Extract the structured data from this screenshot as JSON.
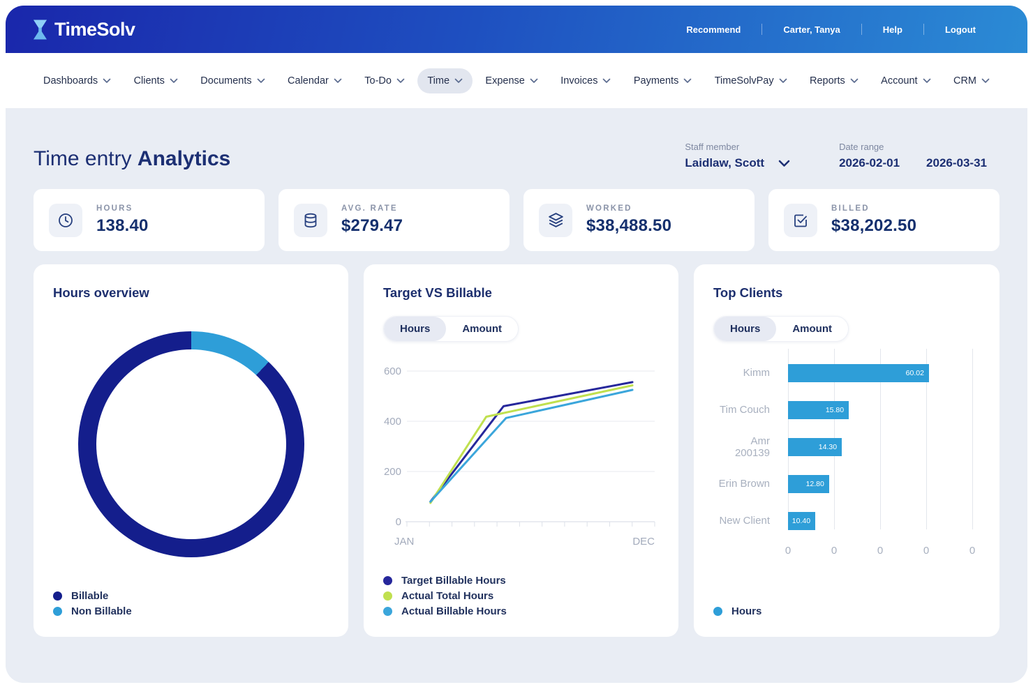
{
  "header": {
    "logo_text": "TimeSolv",
    "links": [
      "Recommend",
      "Carter, Tanya",
      "Help",
      "Logout"
    ]
  },
  "nav": {
    "items": [
      {
        "label": "Dashboards",
        "active": false
      },
      {
        "label": "Clients",
        "active": false
      },
      {
        "label": "Documents",
        "active": false
      },
      {
        "label": "Calendar",
        "active": false
      },
      {
        "label": "To-Do",
        "active": false
      },
      {
        "label": "Time",
        "active": true
      },
      {
        "label": "Expense",
        "active": false
      },
      {
        "label": "Invoices",
        "active": false
      },
      {
        "label": "Payments",
        "active": false
      },
      {
        "label": "TimeSolvPay",
        "active": false
      },
      {
        "label": "Reports",
        "active": false
      },
      {
        "label": "Account",
        "active": false
      },
      {
        "label": "CRM",
        "active": false
      }
    ]
  },
  "page": {
    "title_regular": "Time entry ",
    "title_bold": "Analytics",
    "staff_member": {
      "label": "Staff member",
      "value": "Laidlaw, Scott"
    },
    "date_range": {
      "label": "Date range",
      "start": "2026-02-01",
      "end": "2026-03-31"
    }
  },
  "stats": [
    {
      "icon": "clock-icon",
      "label": "HOURS",
      "value": "138.40"
    },
    {
      "icon": "database-icon",
      "label": "AVG. RATE",
      "value": "$279.47"
    },
    {
      "icon": "layers-icon",
      "label": "WORKED",
      "value": "$38,488.50"
    },
    {
      "icon": "check-square-icon",
      "label": "BILLED",
      "value": "$38,202.50"
    }
  ],
  "panels": {
    "hours_overview": {
      "title": "Hours overview"
    },
    "target_vs_billable": {
      "title": "Target VS Billable",
      "tabs": [
        "Hours",
        "Amount"
      ],
      "active_tab": "Hours"
    },
    "top_clients": {
      "title": "Top Clients",
      "tabs": [
        "Hours",
        "Amount"
      ],
      "active_tab": "Hours"
    }
  },
  "chart_data": [
    {
      "type": "pie",
      "subtype": "donut",
      "title": "Hours overview",
      "labels": [
        "Billable",
        "Non Billable"
      ],
      "values_pct": [
        88,
        12
      ],
      "colors": [
        "#141e8c",
        "#2e9ed8"
      ],
      "legend_position": "bottom-left"
    },
    {
      "type": "line",
      "title": "Target VS Billable",
      "unit": "Hours",
      "x_axis": {
        "start_label": "JAN",
        "end_label": "DEC",
        "tick_count": 12
      },
      "y_axis": {
        "min": 0,
        "max": 600,
        "ticks": [
          0,
          200,
          400,
          600
        ]
      },
      "grid": true,
      "legend_position": "bottom-left",
      "series": [
        {
          "name": "Target Billable Hours",
          "color": "#26279b",
          "points": [
            {
              "x": 0.095,
              "y": 80
            },
            {
              "x": 0.39,
              "y": 460
            },
            {
              "x": 0.91,
              "y": 556
            }
          ]
        },
        {
          "name": "Actual Total Hours",
          "color": "#c0e04f",
          "points": [
            {
              "x": 0.095,
              "y": 75
            },
            {
              "x": 0.32,
              "y": 418
            },
            {
              "x": 0.91,
              "y": 543
            }
          ]
        },
        {
          "name": "Actual Billable Hours",
          "color": "#3ba6db",
          "points": [
            {
              "x": 0.095,
              "y": 80
            },
            {
              "x": 0.4,
              "y": 413
            },
            {
              "x": 0.91,
              "y": 525
            }
          ]
        }
      ]
    },
    {
      "type": "bar",
      "orientation": "horizontal",
      "title": "Top Clients",
      "unit": "Hours",
      "categories": [
        "Kimm",
        "Tim Couch",
        "Amr 200139",
        "Erin Brown",
        "New Client"
      ],
      "values": [
        60.02,
        15.8,
        14.3,
        12.8,
        10.4
      ],
      "value_labels": [
        "60.02",
        "15.80",
        "14.30",
        "12.80",
        "10.40"
      ],
      "bar_width_pct": [
        76.5,
        33.0,
        29.2,
        22.3,
        14.8
      ],
      "bar_color": "#2e9ed8",
      "x_tick_labels": [
        "0",
        "0",
        "0",
        "0",
        "0"
      ],
      "grid": true,
      "legend": [
        {
          "label": "Hours",
          "color": "#2e9ed8"
        }
      ]
    }
  ]
}
